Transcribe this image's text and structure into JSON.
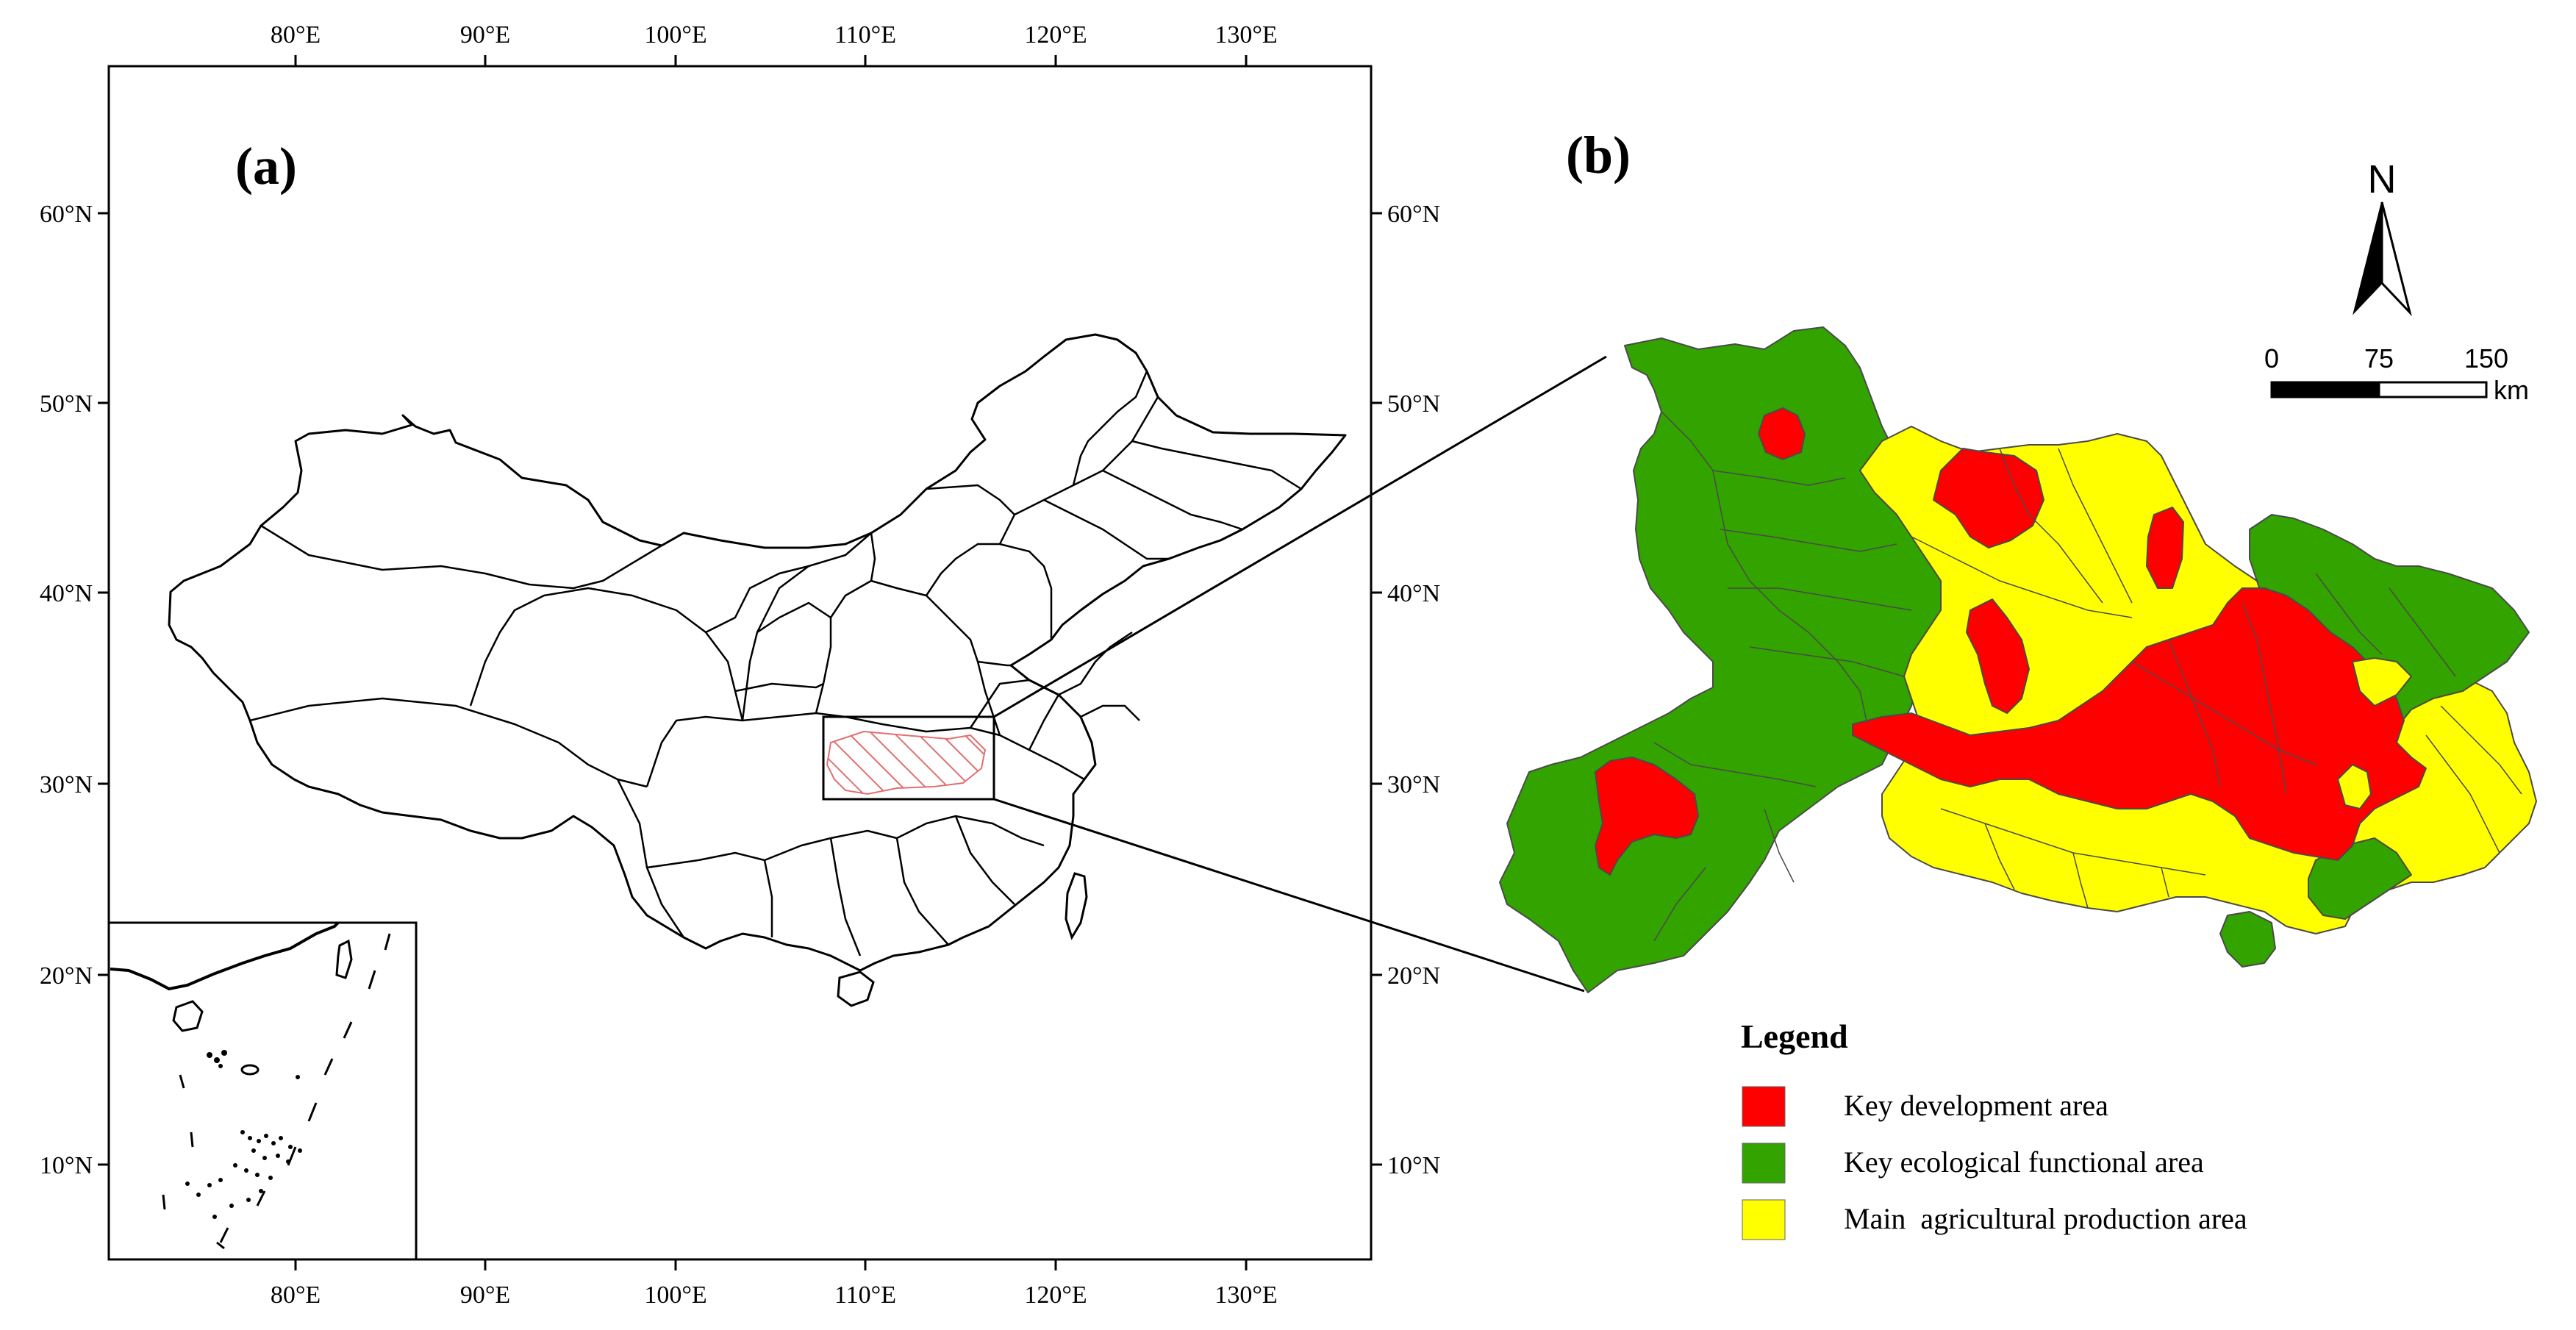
{
  "panel_a": {
    "label": "(a)",
    "lon_ticks_top": [
      "80°E",
      "90°E",
      "100°E",
      "110°E",
      "120°E",
      "130°E"
    ],
    "lon_ticks_bottom": [
      "80°E",
      "90°E",
      "100°E",
      "110°E",
      "120°E",
      "130°E"
    ],
    "lat_ticks_left": [
      "60°N",
      "50°N",
      "40°N",
      "30°N",
      "20°N",
      "10°N"
    ],
    "lat_ticks_right": [
      "60°N",
      "50°N",
      "40°N",
      "30°N",
      "20°N",
      "10°N"
    ]
  },
  "panel_b": {
    "label": "(b)",
    "north_arrow": "N",
    "scale_bar": {
      "labels": [
        "0",
        "75",
        "150"
      ],
      "unit": "km"
    },
    "legend": {
      "title": "Legend",
      "items": [
        {
          "label": "Key development area",
          "color": "#ff0000"
        },
        {
          "label": "Key ecological functional area",
          "color": "#33a300"
        },
        {
          "label": "Main  agricultural production area",
          "color": "#ffff00"
        }
      ]
    }
  },
  "colors": {
    "frame": "#000000",
    "highlight_hatch": "#e07070",
    "region_border": "#555555"
  }
}
